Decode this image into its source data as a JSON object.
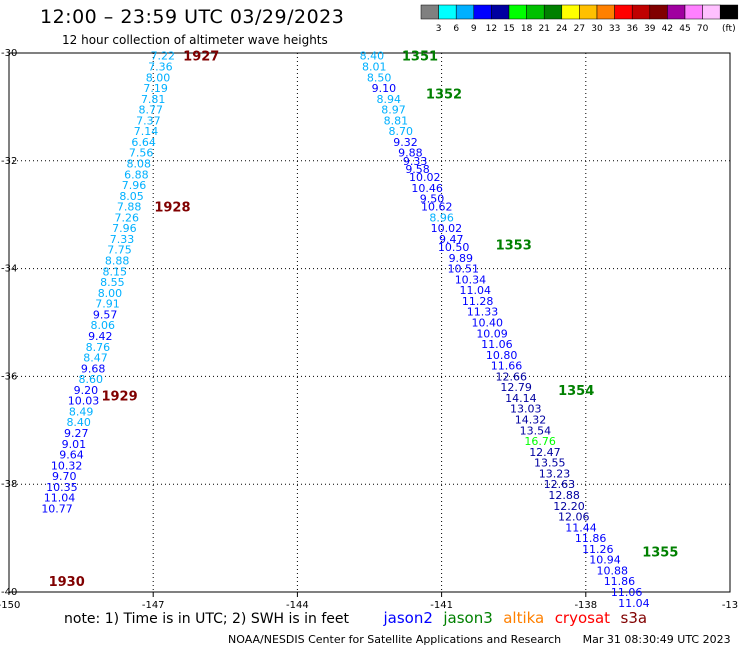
{
  "header": {
    "title": "12:00 – 23:59 UTC 03/29/2023",
    "subtitle": "12 hour collection of altimeter wave heights"
  },
  "legend": {
    "colors": [
      "#808080",
      "#00ffff",
      "#00b0ff",
      "#0000ff",
      "#0000a0",
      "#00ff00",
      "#00c000",
      "#008000",
      "#ffff00",
      "#ffc000",
      "#ff8000",
      "#ff0000",
      "#c00000",
      "#800000",
      "#a000a0",
      "#ff80ff",
      "#ffc0ff",
      "#000000"
    ],
    "labels": [
      "3",
      "6",
      "9",
      "12",
      "15",
      "18",
      "21",
      "24",
      "27",
      "30",
      "33",
      "36",
      "39",
      "42",
      "45",
      "70"
    ],
    "unit": "(ft)"
  },
  "note": {
    "text": "note:  1) Time is in UTC; 2) SWH is in feet",
    "satellites": [
      {
        "name": "jason2",
        "color": "#0000ff"
      },
      {
        "name": "jason3",
        "color": "#008000"
      },
      {
        "name": "altika",
        "color": "#ff8000"
      },
      {
        "name": "cryosat",
        "color": "#ff0000"
      },
      {
        "name": "s3a",
        "color": "#800000"
      }
    ]
  },
  "footer": {
    "credit": "NOAA/NESDIS Center for Satellite Applications and Research",
    "timestamp": "Mar 31 08:30:49 UTC 2023"
  },
  "chart_data": {
    "type": "scatter",
    "title": "12:00 – 23:59 UTC 03/29/2023",
    "subtitle": "12 hour collection of altimeter wave heights",
    "xlim": [
      -150,
      -135
    ],
    "ylim": [
      -40,
      -30
    ],
    "x_ticks": [
      -147,
      -144,
      -141,
      -138
    ],
    "y_ticks": [
      -32,
      -34,
      -36,
      -38
    ],
    "x_tick_labels": [
      "-150",
      "-147",
      "-144",
      "-141",
      "-138",
      "-13"
    ],
    "y_tick_labels": [
      "-30",
      "-32",
      "-34",
      "-36",
      "-38",
      "-40"
    ],
    "grid": true,
    "series": [
      {
        "name": "jason3",
        "color": "#008000",
        "track_markers": [
          {
            "label": "1351",
            "x": -141.45,
            "y": -30.05
          },
          {
            "label": "1352",
            "x": -140.95,
            "y": -30.75
          },
          {
            "label": "1353",
            "x": -139.5,
            "y": -33.55
          },
          {
            "label": "1354",
            "x": -138.2,
            "y": -36.25
          },
          {
            "label": "1355",
            "x": -136.45,
            "y": -39.25
          }
        ],
        "points": [
          {
            "x": -142.45,
            "y": -30.05,
            "v": "8.40"
          },
          {
            "x": -142.4,
            "y": -30.25,
            "v": "8.01"
          },
          {
            "x": -142.3,
            "y": -30.45,
            "v": "8.50"
          },
          {
            "x": -142.2,
            "y": -30.65,
            "v": "9.10"
          },
          {
            "x": -142.1,
            "y": -30.85,
            "v": "8.94"
          },
          {
            "x": -142.0,
            "y": -31.05,
            "v": "8.97"
          },
          {
            "x": -141.95,
            "y": -31.25,
            "v": "8.81"
          },
          {
            "x": -141.85,
            "y": -31.45,
            "v": "8.70"
          },
          {
            "x": -141.75,
            "y": -31.65,
            "v": "9.32"
          },
          {
            "x": -141.65,
            "y": -31.85,
            "v": "9.88"
          },
          {
            "x": -141.55,
            "y": -32.0,
            "v": "9.33"
          },
          {
            "x": -141.5,
            "y": -32.15,
            "v": "9.58"
          },
          {
            "x": -141.35,
            "y": -32.3,
            "v": "10.02"
          },
          {
            "x": -141.3,
            "y": -32.5,
            "v": "10.46"
          },
          {
            "x": -141.2,
            "y": -32.7,
            "v": "9.50"
          },
          {
            "x": -141.1,
            "y": -32.85,
            "v": "10.62"
          },
          {
            "x": -141.0,
            "y": -33.05,
            "v": "8.96"
          },
          {
            "x": -140.9,
            "y": -33.25,
            "v": "10.02"
          },
          {
            "x": -140.8,
            "y": -33.45,
            "v": "9.47"
          },
          {
            "x": -140.75,
            "y": -33.6,
            "v": "10.50"
          },
          {
            "x": -140.6,
            "y": -33.8,
            "v": "9.89"
          },
          {
            "x": -140.55,
            "y": -34.0,
            "v": "10.51"
          },
          {
            "x": -140.4,
            "y": -34.2,
            "v": "10.34"
          },
          {
            "x": -140.3,
            "y": -34.4,
            "v": "11.04"
          },
          {
            "x": -140.25,
            "y": -34.6,
            "v": "11.28"
          },
          {
            "x": -140.15,
            "y": -34.8,
            "v": "11.33"
          },
          {
            "x": -140.05,
            "y": -35.0,
            "v": "10.40"
          },
          {
            "x": -139.95,
            "y": -35.2,
            "v": "10.09"
          },
          {
            "x": -139.85,
            "y": -35.4,
            "v": "11.06"
          },
          {
            "x": -139.75,
            "y": -35.6,
            "v": "10.80"
          },
          {
            "x": -139.65,
            "y": -35.8,
            "v": "11.66"
          },
          {
            "x": -139.55,
            "y": -36.0,
            "v": "12.66"
          },
          {
            "x": -139.45,
            "y": -36.2,
            "v": "12.79"
          },
          {
            "x": -139.35,
            "y": -36.4,
            "v": "14.14"
          },
          {
            "x": -139.25,
            "y": -36.6,
            "v": "13.03"
          },
          {
            "x": -139.15,
            "y": -36.8,
            "v": "14.32"
          },
          {
            "x": -139.05,
            "y": -37.0,
            "v": "13.54"
          },
          {
            "x": -138.95,
            "y": -37.2,
            "v": "16.76"
          },
          {
            "x": -138.85,
            "y": -37.4,
            "v": "12.47"
          },
          {
            "x": -138.75,
            "y": -37.6,
            "v": "13.55"
          },
          {
            "x": -138.65,
            "y": -37.8,
            "v": "13.23"
          },
          {
            "x": -138.55,
            "y": -38.0,
            "v": "12.63"
          },
          {
            "x": -138.45,
            "y": -38.2,
            "v": "12.88"
          },
          {
            "x": -138.35,
            "y": -38.4,
            "v": "12.20"
          },
          {
            "x": -138.25,
            "y": -38.6,
            "v": "12.06"
          },
          {
            "x": -138.1,
            "y": -38.8,
            "v": "11.44"
          },
          {
            "x": -137.9,
            "y": -39.0,
            "v": "11.86"
          },
          {
            "x": -137.75,
            "y": -39.2,
            "v": "11.26"
          },
          {
            "x": -137.6,
            "y": -39.4,
            "v": "10.94"
          },
          {
            "x": -137.45,
            "y": -39.6,
            "v": "10.88"
          },
          {
            "x": -137.3,
            "y": -39.8,
            "v": "11.86"
          },
          {
            "x": -137.15,
            "y": -40.0,
            "v": "11.06"
          },
          {
            "x": -137.0,
            "y": -40.2,
            "v": "11.04"
          }
        ]
      },
      {
        "name": "s3a",
        "color": "#800000",
        "track_markers": [
          {
            "label": "1927",
            "x": -146.0,
            "y": -30.05
          },
          {
            "label": "1928",
            "x": -146.6,
            "y": -32.85
          },
          {
            "label": "1929",
            "x": -147.7,
            "y": -36.35
          },
          {
            "label": "1930",
            "x": -148.8,
            "y": -39.8
          }
        ],
        "points": [
          {
            "x": -146.8,
            "y": -30.05,
            "v": "7.22"
          },
          {
            "x": -146.85,
            "y": -30.25,
            "v": "7.36"
          },
          {
            "x": -146.9,
            "y": -30.45,
            "v": "8.00"
          },
          {
            "x": -146.95,
            "y": -30.65,
            "v": "7.19"
          },
          {
            "x": -147.0,
            "y": -30.85,
            "v": "7.81"
          },
          {
            "x": -147.05,
            "y": -31.05,
            "v": "8.77"
          },
          {
            "x": -147.1,
            "y": -31.25,
            "v": "7.37"
          },
          {
            "x": -147.15,
            "y": -31.45,
            "v": "7.14"
          },
          {
            "x": -147.2,
            "y": -31.65,
            "v": "6.64"
          },
          {
            "x": -147.25,
            "y": -31.85,
            "v": "7.56"
          },
          {
            "x": -147.3,
            "y": -32.05,
            "v": "8.08"
          },
          {
            "x": -147.35,
            "y": -32.25,
            "v": "6.88"
          },
          {
            "x": -147.4,
            "y": -32.45,
            "v": "7.96"
          },
          {
            "x": -147.45,
            "y": -32.65,
            "v": "8.05"
          },
          {
            "x": -147.5,
            "y": -32.85,
            "v": "7.88"
          },
          {
            "x": -147.55,
            "y": -33.05,
            "v": "7.26"
          },
          {
            "x": -147.6,
            "y": -33.25,
            "v": "7.96"
          },
          {
            "x": -147.65,
            "y": -33.45,
            "v": "7.33"
          },
          {
            "x": -147.7,
            "y": -33.65,
            "v": "7.75"
          },
          {
            "x": -147.75,
            "y": -33.85,
            "v": "8.88"
          },
          {
            "x": -147.8,
            "y": -34.05,
            "v": "8.15"
          },
          {
            "x": -147.85,
            "y": -34.25,
            "v": "8.55"
          },
          {
            "x": -147.9,
            "y": -34.45,
            "v": "8.00"
          },
          {
            "x": -147.95,
            "y": -34.65,
            "v": "7.91"
          },
          {
            "x": -148.0,
            "y": -34.85,
            "v": "9.57"
          },
          {
            "x": -148.05,
            "y": -35.05,
            "v": "8.06"
          },
          {
            "x": -148.1,
            "y": -35.25,
            "v": "9.42"
          },
          {
            "x": -148.15,
            "y": -35.45,
            "v": "8.76"
          },
          {
            "x": -148.2,
            "y": -35.65,
            "v": "8.47"
          },
          {
            "x": -148.25,
            "y": -35.85,
            "v": "9.68"
          },
          {
            "x": -148.3,
            "y": -36.05,
            "v": "8.60"
          },
          {
            "x": -148.4,
            "y": -36.25,
            "v": "9.20"
          },
          {
            "x": -148.45,
            "y": -36.45,
            "v": "10.03"
          },
          {
            "x": -148.5,
            "y": -36.65,
            "v": "8.49"
          },
          {
            "x": -148.55,
            "y": -36.85,
            "v": "8.40"
          },
          {
            "x": -148.6,
            "y": -37.05,
            "v": "9.27"
          },
          {
            "x": -148.65,
            "y": -37.25,
            "v": "9.01"
          },
          {
            "x": -148.7,
            "y": -37.45,
            "v": "9.64"
          },
          {
            "x": -148.8,
            "y": -37.65,
            "v": "10.32"
          },
          {
            "x": -148.85,
            "y": -37.85,
            "v": "9.70"
          },
          {
            "x": -148.9,
            "y": -38.05,
            "v": "10.35"
          },
          {
            "x": -148.95,
            "y": -38.25,
            "v": "11.04"
          },
          {
            "x": -149.0,
            "y": -38.45,
            "v": "10.77"
          }
        ]
      }
    ]
  }
}
